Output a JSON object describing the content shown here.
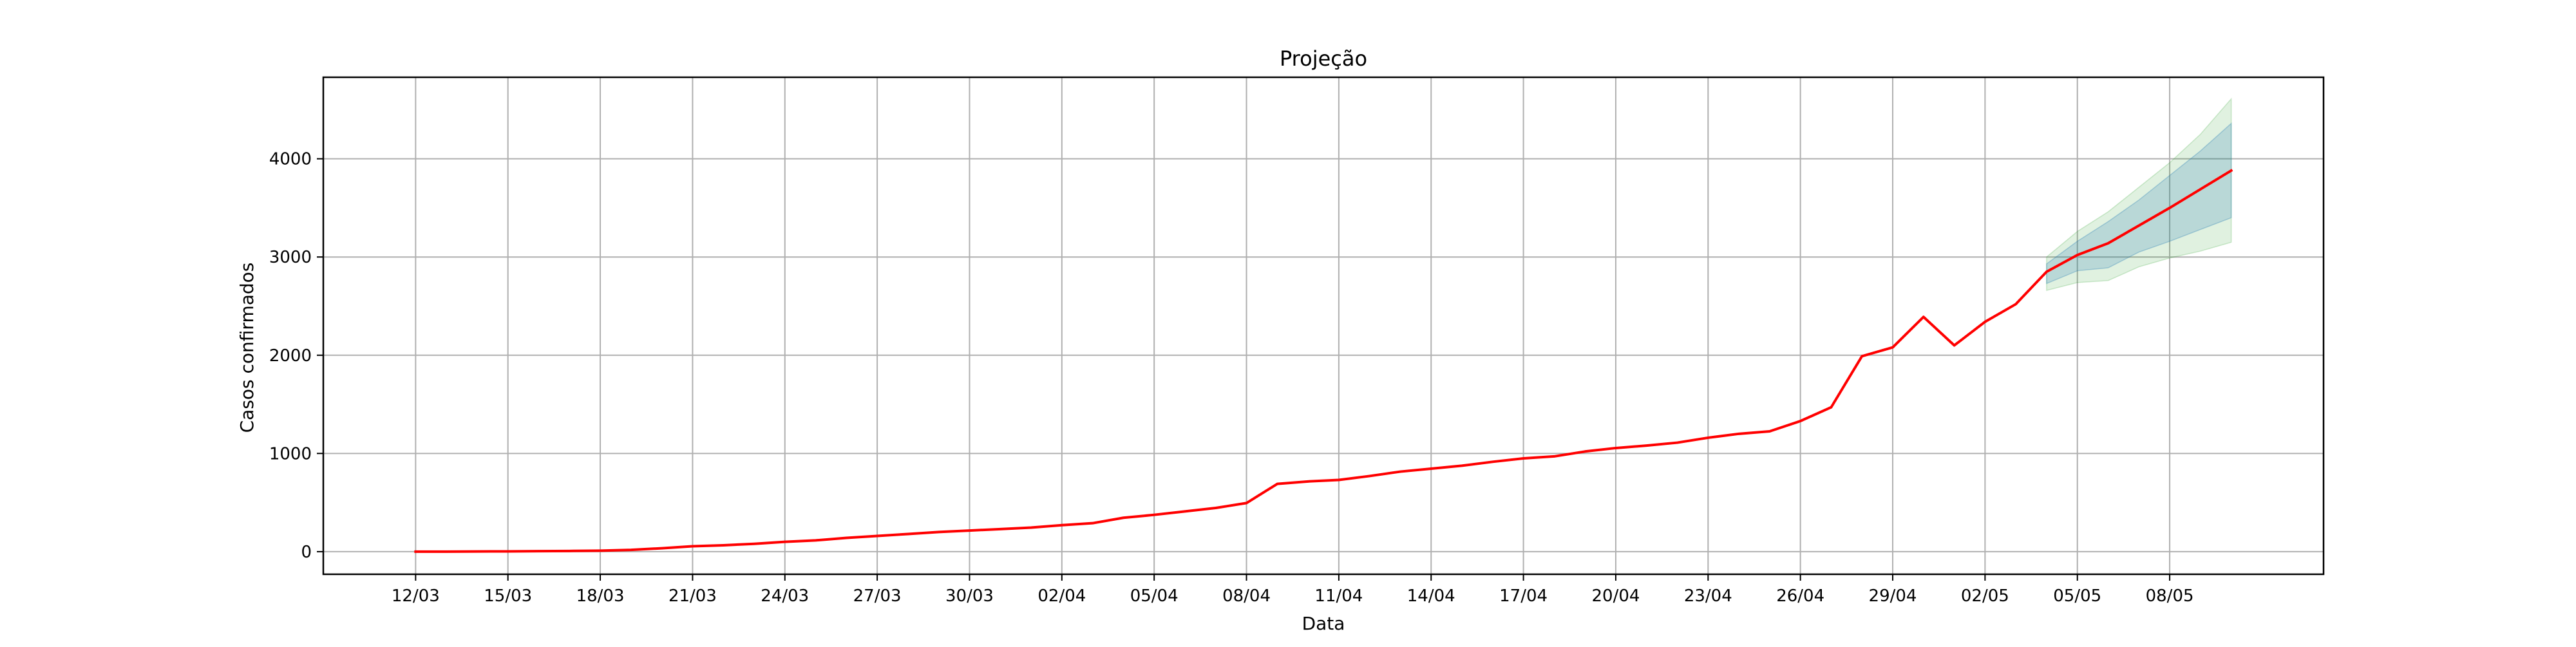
{
  "chart_data": {
    "type": "line",
    "title": "Projeção",
    "xlabel": "Data",
    "ylabel": "Casos confirmados",
    "x_tick_labels": [
      "12/03",
      "15/03",
      "18/03",
      "21/03",
      "24/03",
      "27/03",
      "30/03",
      "02/04",
      "05/04",
      "08/04",
      "11/04",
      "14/04",
      "17/04",
      "20/04",
      "23/04",
      "26/04",
      "29/04",
      "02/05",
      "05/05",
      "08/05"
    ],
    "y_ticks": [
      0,
      1000,
      2000,
      3000,
      4000
    ],
    "ylim": [
      -230,
      4830
    ],
    "xlim_day_index": [
      -3.0,
      62.0
    ],
    "grid": true,
    "series": [
      {
        "color": "#ff0000",
        "x_day_index": [
          0,
          1,
          2,
          3,
          4,
          5,
          6,
          7,
          8,
          9,
          10,
          11,
          12,
          13,
          14,
          15,
          16,
          17,
          18,
          19,
          20,
          21,
          22,
          23,
          24,
          25,
          26,
          27,
          28,
          29,
          30,
          31,
          32,
          33,
          34,
          35,
          36,
          37,
          38,
          39,
          40,
          41,
          42,
          43,
          44,
          45,
          46,
          47,
          48,
          49,
          50,
          51,
          52,
          53,
          54,
          55,
          56,
          57,
          58,
          59
        ],
        "y": [
          0,
          0,
          2,
          3,
          5,
          7,
          10,
          18,
          35,
          55,
          65,
          80,
          100,
          115,
          140,
          160,
          180,
          200,
          215,
          230,
          245,
          270,
          290,
          345,
          375,
          410,
          445,
          495,
          690,
          715,
          730,
          770,
          815,
          845,
          875,
          915,
          950,
          970,
          1020,
          1055,
          1080,
          1110,
          1160,
          1200,
          1225,
          1330,
          1470,
          1990,
          2080,
          2390,
          2100,
          2340,
          2520,
          2850,
          3020,
          3140,
          3320,
          3500,
          3690,
          3880
        ]
      }
    ],
    "confidence_bands": [
      {
        "color": "#2ca02c",
        "opacity": 0.15,
        "x_day_index": [
          53,
          54,
          55,
          56,
          57,
          58,
          59
        ],
        "lower": [
          2660,
          2740,
          2760,
          2900,
          2990,
          3060,
          3150
        ],
        "upper": [
          3000,
          3260,
          3460,
          3710,
          3960,
          4250,
          4610
        ]
      },
      {
        "color": "#1f77b4",
        "opacity": 0.2,
        "x_day_index": [
          53,
          54,
          55,
          56,
          57,
          58,
          59
        ],
        "lower": [
          2730,
          2860,
          2890,
          3050,
          3160,
          3280,
          3400
        ],
        "upper": [
          2930,
          3160,
          3360,
          3580,
          3830,
          4080,
          4360
        ]
      }
    ]
  }
}
